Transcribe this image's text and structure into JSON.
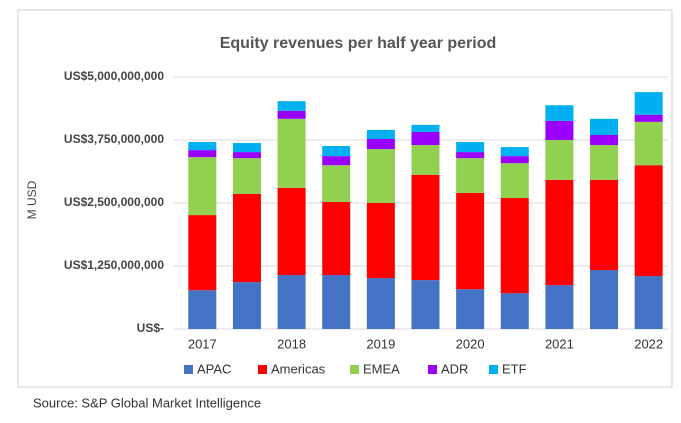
{
  "chart_data": {
    "type": "stacked_bar",
    "title": "Equity revenues per half year period",
    "y_axis_label": "M USD",
    "source": "Source: S&P Global Market Intelligence",
    "categories": [
      "2017",
      null,
      "2018",
      null,
      "2019",
      null,
      "2020",
      null,
      "2021",
      null,
      "2022"
    ],
    "series": [
      {
        "name": "APAC",
        "color": "#4472c4",
        "values": [
          770000000,
          930000000,
          1070000000,
          1070000000,
          1010000000,
          970000000,
          790000000,
          710000000,
          870000000,
          1170000000,
          1050000000
        ]
      },
      {
        "name": "Americas",
        "color": "#ff0000",
        "values": [
          1490000000,
          1750000000,
          1730000000,
          1450000000,
          1490000000,
          2090000000,
          1910000000,
          1890000000,
          2090000000,
          1790000000,
          2200000000
        ]
      },
      {
        "name": "EMEA",
        "color": "#92d050",
        "values": [
          1150000000,
          710000000,
          1370000000,
          730000000,
          1070000000,
          590000000,
          690000000,
          690000000,
          790000000,
          690000000,
          860000000
        ]
      },
      {
        "name": "ADR",
        "color": "#9900ff",
        "values": [
          140000000,
          120000000,
          160000000,
          180000000,
          200000000,
          260000000,
          120000000,
          140000000,
          380000000,
          200000000,
          140000000
        ]
      },
      {
        "name": "ETF",
        "color": "#00b0f0",
        "values": [
          160000000,
          180000000,
          190000000,
          200000000,
          180000000,
          140000000,
          200000000,
          180000000,
          310000000,
          320000000,
          450000000
        ]
      }
    ],
    "ylim": [
      0,
      5000000000
    ],
    "yticks": [
      {
        "value": 0,
        "label": "US$-"
      },
      {
        "value": 1250000000,
        "label": "US$1,250,000,000"
      },
      {
        "value": 2500000000,
        "label": "US$2,500,000,000"
      },
      {
        "value": 3750000000,
        "label": "US$3,750,000,000"
      },
      {
        "value": 5000000000,
        "label": "US$5,000,000,000"
      }
    ],
    "grid": true,
    "legend": "bottom"
  }
}
